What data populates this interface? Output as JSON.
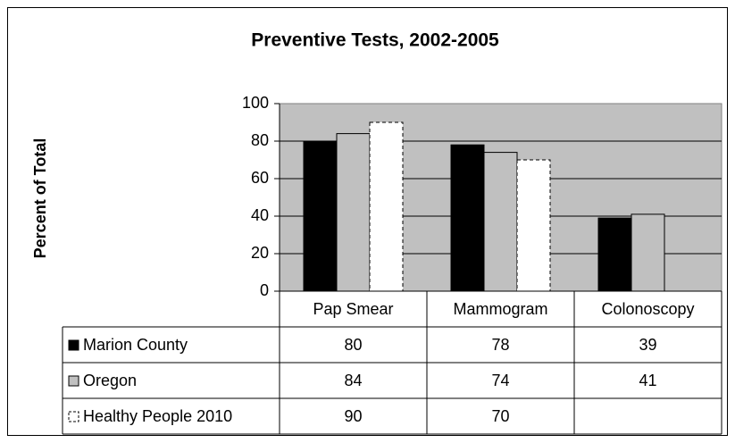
{
  "chart_data": {
    "type": "bar",
    "title": "Preventive Tests, 2002-2005",
    "y_label": "Percent of Total",
    "categories": [
      "Pap Smear",
      "Mammogram",
      "Colonoscopy"
    ],
    "series": [
      {
        "name": "Marion County",
        "color": "#000000",
        "line_style": "solid",
        "values": [
          80,
          78,
          39
        ]
      },
      {
        "name": "Oregon",
        "color": "#c0c0c0",
        "line_style": "solid",
        "values": [
          84,
          74,
          41
        ]
      },
      {
        "name": "Healthy People 2010",
        "color": "#ffffff",
        "line_style": "dashed",
        "values": [
          90,
          70,
          null
        ]
      }
    ],
    "ylim": [
      0,
      100
    ],
    "yticks": [
      0,
      20,
      40,
      60,
      80,
      100
    ],
    "grid": true
  }
}
